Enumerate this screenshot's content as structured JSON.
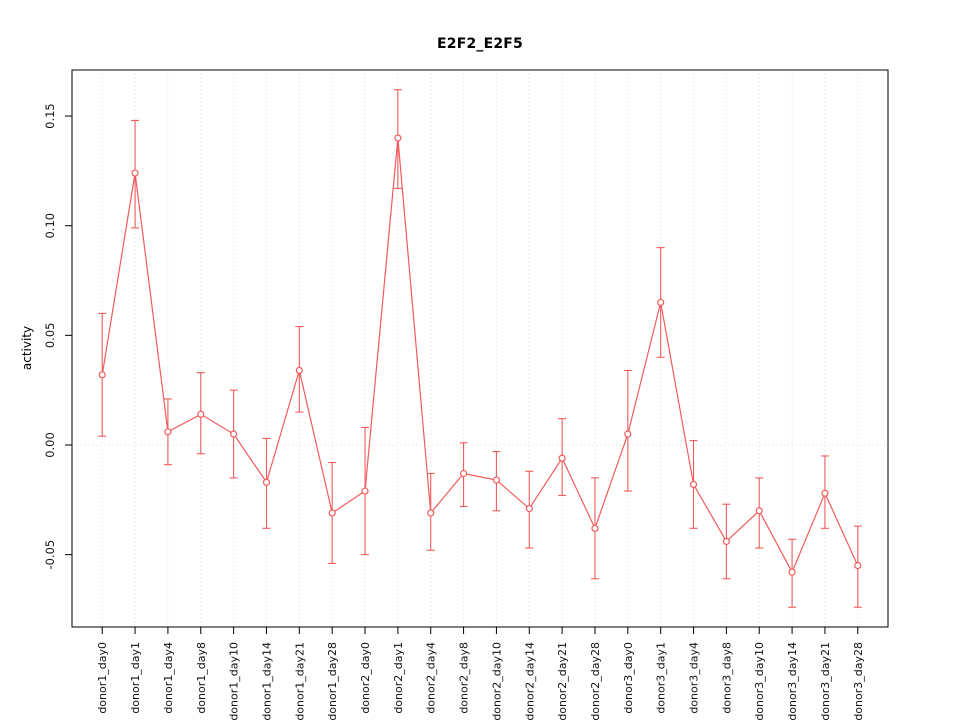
{
  "chart": {
    "title": "E2F2_E2F5",
    "ylabel": "activity",
    "background": "#ffffff"
  },
  "chart_data": {
    "type": "line",
    "title": "E2F2_E2F5",
    "xlabel": "",
    "ylabel": "activity",
    "marker": "open-circle",
    "series_color": "#f25b5b",
    "grid_color": "#dcdcdc",
    "axis_color": "#000000",
    "grid": "vertical dotted gridlines at each category, dotted horizontal line at y=0",
    "legend_position": "none",
    "ylim": [
      -0.083,
      0.171
    ],
    "ytick_values": [
      -0.05,
      0.0,
      0.05,
      0.1,
      0.15
    ],
    "ytick_labels": [
      "-0.05",
      "0.00",
      "0.05",
      "0.10",
      "0.15"
    ],
    "categories": [
      "donor1_day0",
      "donor1_day1",
      "donor1_day4",
      "donor1_day8",
      "donor1_day10",
      "donor1_day14",
      "donor1_day21",
      "donor1_day28",
      "donor2_day0",
      "donor2_day1",
      "donor2_day4",
      "donor2_day8",
      "donor2_day10",
      "donor2_day14",
      "donor2_day21",
      "donor2_day28",
      "donor3_day0",
      "donor3_day1",
      "donor3_day4",
      "donor3_day8",
      "donor3_day10",
      "donor3_day14",
      "donor3_day21",
      "donor3_day28"
    ],
    "series": [
      {
        "name": "activity",
        "values": [
          0.032,
          0.124,
          0.006,
          0.014,
          0.005,
          -0.017,
          0.034,
          -0.031,
          -0.021,
          0.14,
          -0.031,
          -0.013,
          -0.016,
          -0.029,
          -0.006,
          -0.038,
          0.005,
          0.065,
          -0.018,
          -0.044,
          -0.03,
          -0.058,
          -0.022,
          -0.055
        ],
        "error_low": [
          0.004,
          0.099,
          -0.009,
          -0.004,
          -0.015,
          -0.038,
          0.015,
          -0.054,
          -0.05,
          0.117,
          -0.048,
          -0.028,
          -0.03,
          -0.047,
          -0.023,
          -0.061,
          -0.021,
          0.04,
          -0.038,
          -0.061,
          -0.047,
          -0.074,
          -0.038,
          -0.074
        ],
        "error_high": [
          0.06,
          0.148,
          0.021,
          0.033,
          0.025,
          0.003,
          0.054,
          -0.008,
          0.008,
          0.162,
          -0.013,
          0.001,
          -0.003,
          -0.012,
          0.012,
          -0.015,
          0.034,
          0.09,
          0.002,
          -0.027,
          -0.015,
          -0.043,
          -0.005,
          -0.037
        ]
      }
    ]
  }
}
